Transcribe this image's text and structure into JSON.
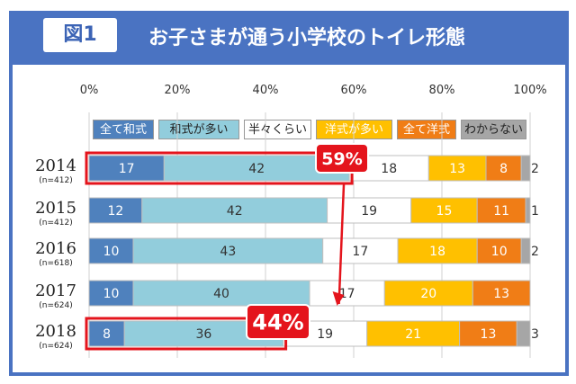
{
  "header": {
    "figure_label": "図1",
    "title": "お子さまが通う小学校のトイレ形態"
  },
  "colors": {
    "header_bg": "#4a73c2",
    "series": [
      "#4f81bd",
      "#92cddc",
      "#ffffff",
      "#ffc000",
      "#f07d16",
      "#a6a6a6"
    ],
    "highlight": "#e4141c"
  },
  "chart_data": {
    "type": "bar",
    "orientation": "horizontal",
    "stacked": true,
    "xlim": [
      0,
      100
    ],
    "x_tick_labels": [
      "0%",
      "20%",
      "40%",
      "60%",
      "80%",
      "100%"
    ],
    "grid": true,
    "legend_position": "top",
    "categories": [
      "2014",
      "2015",
      "2016",
      "2017",
      "2018"
    ],
    "category_sublabels": [
      "(n=412)",
      "(n=412)",
      "(n=618)",
      "(n=624)",
      "(n=624)"
    ],
    "series": [
      {
        "name": "全て和式",
        "values": [
          17,
          12,
          10,
          10,
          8
        ]
      },
      {
        "name": "和式が多い",
        "values": [
          42,
          42,
          43,
          40,
          36
        ]
      },
      {
        "name": "半々くらい",
        "values": [
          18,
          19,
          17,
          17,
          19
        ]
      },
      {
        "name": "洋式が多い",
        "values": [
          13,
          15,
          18,
          20,
          21
        ]
      },
      {
        "name": "全て洋式",
        "values": [
          8,
          11,
          10,
          13,
          13
        ]
      },
      {
        "name": "わからない",
        "values": [
          2,
          1,
          2,
          0,
          3
        ]
      }
    ],
    "annotations": [
      {
        "text": "59%",
        "category": "2014"
      },
      {
        "text": "44%",
        "category": "2018"
      }
    ]
  }
}
